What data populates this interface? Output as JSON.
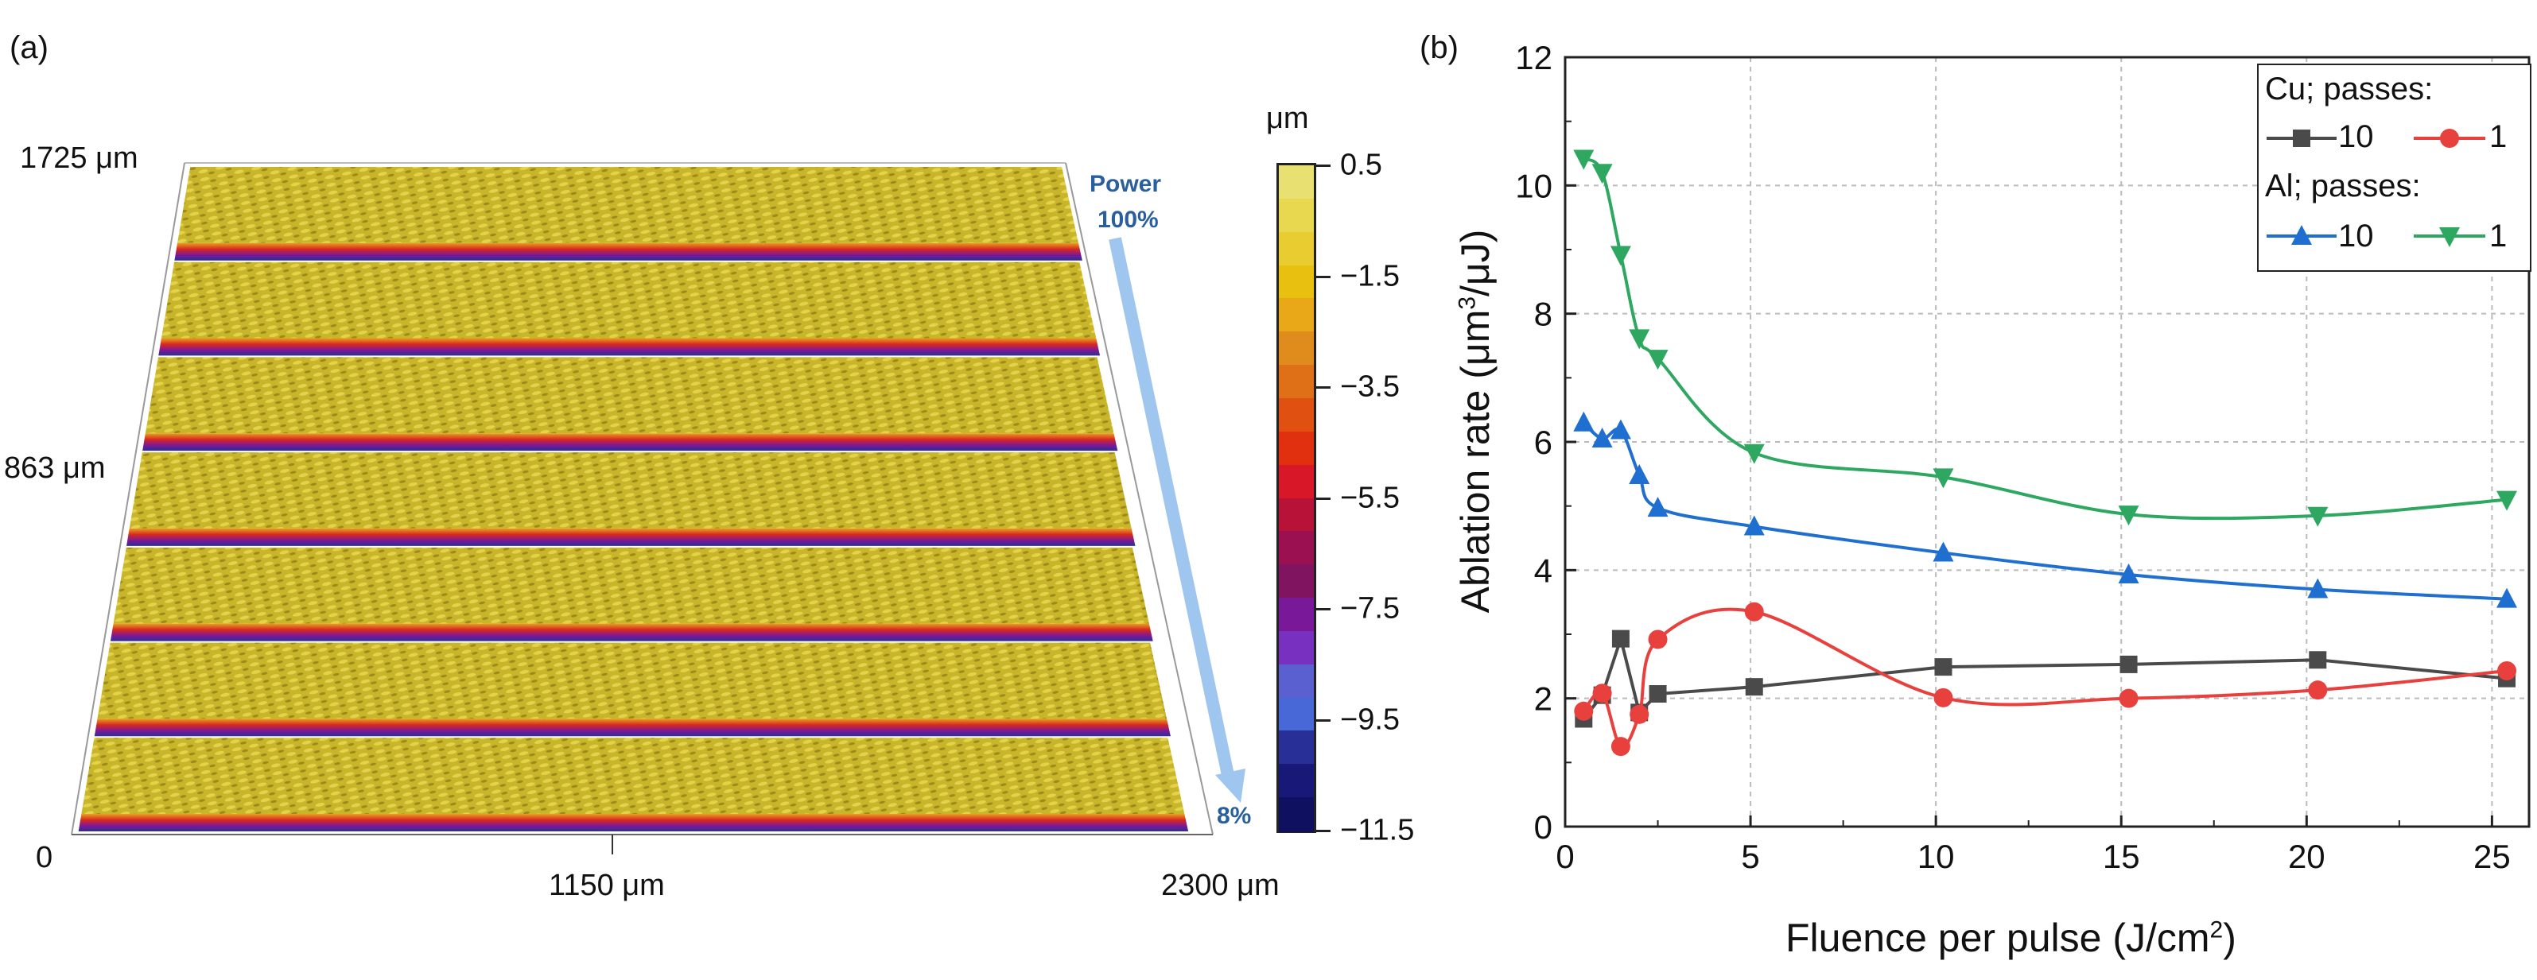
{
  "panel_a": {
    "tag": "(a)",
    "y_top_label": "1725 μm",
    "y_mid_label": "863 μm",
    "x_origin_label": "0",
    "x_mid_label": "1150 μm",
    "x_end_label": "2300 μm",
    "power_label": "Power",
    "power_start": "100%",
    "power_end": "8%",
    "colorbar": {
      "unit": "μm",
      "labels": [
        "0.5",
        "−1.5",
        "−3.5",
        "−5.5",
        "−7.5",
        "−9.5",
        "−11.5"
      ],
      "colors": [
        "#e8e070",
        "#e8d850",
        "#e8cc30",
        "#e8c010",
        "#e8a818",
        "#e08c1c",
        "#e07018",
        "#e05010",
        "#e03010",
        "#d81828",
        "#b81238",
        "#9a1050",
        "#801460",
        "#7a189a",
        "#7830c0",
        "#5a60d0",
        "#4868d8",
        "#283098",
        "#181878",
        "#101060"
      ]
    },
    "stripe_count": 7,
    "colors": {
      "surface": "#c8b428",
      "edge_red": "#d82820",
      "edge_blue": "#3030a0",
      "arrow": "#9ec6ee"
    }
  },
  "panel_b": {
    "tag": "(b)",
    "xlabel_main": "Fluence per pulse (J/cm",
    "xlabel_sup": "2",
    "xlabel_end": ")",
    "ylabel_main": "Ablation rate (μm",
    "ylabel_sup": "3",
    "ylabel_end": "/μJ)",
    "legend": {
      "cu_header": "Cu; passes:",
      "al_header": "Al; passes:",
      "label_10": "10",
      "label_1": "1"
    }
  },
  "chart_data": {
    "type": "line",
    "title": "",
    "xlabel": "Fluence per pulse (J/cm2)",
    "ylabel": "Ablation rate (μm3/μJ)",
    "xlim": [
      0,
      26
    ],
    "ylim": [
      0,
      12
    ],
    "xticks": [
      0,
      5,
      10,
      15,
      20,
      25
    ],
    "yticks": [
      0,
      2,
      4,
      6,
      8,
      10,
      12
    ],
    "grid": true,
    "legend_position": "top-right",
    "series": [
      {
        "name": "Cu 10 passes",
        "color": "#4a4a4a",
        "marker": "square",
        "x": [
          0.5,
          1.0,
          1.5,
          2.0,
          2.5,
          5.1,
          10.2,
          15.2,
          20.3,
          25.4
        ],
        "y": [
          1.68,
          2.05,
          2.93,
          1.78,
          2.07,
          2.18,
          2.49,
          2.53,
          2.6,
          2.31
        ]
      },
      {
        "name": "Cu 1 pass",
        "color": "#e8403c",
        "marker": "circle",
        "x": [
          0.5,
          1.0,
          1.5,
          2.0,
          2.5,
          5.1,
          10.2,
          15.2,
          20.3,
          25.4
        ],
        "y": [
          1.8,
          2.08,
          1.25,
          1.75,
          2.92,
          3.35,
          2.01,
          2.0,
          2.13,
          2.43
        ]
      },
      {
        "name": "Al 10 passes",
        "color": "#1f6fd0",
        "marker": "triangle-up",
        "x": [
          0.5,
          1.0,
          1.5,
          2.0,
          2.5,
          5.1,
          10.2,
          15.2,
          20.3,
          25.4
        ],
        "y": [
          6.3,
          6.05,
          6.18,
          5.48,
          4.97,
          4.68,
          4.27,
          3.93,
          3.7,
          3.55
        ]
      },
      {
        "name": "Al 1 pass",
        "color": "#2ea860",
        "marker": "triangle-down",
        "x": [
          0.5,
          1.0,
          1.5,
          2.0,
          2.5,
          5.1,
          10.2,
          15.2,
          20.3,
          25.4
        ],
        "y": [
          10.42,
          10.2,
          8.92,
          7.62,
          7.3,
          5.83,
          5.45,
          4.87,
          4.85,
          5.1
        ]
      }
    ]
  }
}
